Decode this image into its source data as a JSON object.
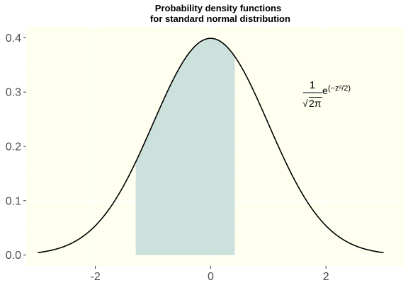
{
  "chart_data": {
    "type": "area",
    "title_line1": "Probability density functions",
    "title_line2": "for standard normal distribution",
    "xlabel": "",
    "ylabel": "",
    "xlim": [
      -3.2,
      3.35
    ],
    "ylim": [
      -0.02,
      0.42
    ],
    "x_ticks": [
      -2,
      0,
      2
    ],
    "x_tick_labels": [
      "-2",
      "0",
      "2"
    ],
    "y_ticks": [
      0.0,
      0.1,
      0.2,
      0.3,
      0.4
    ],
    "y_tick_labels": [
      "0.0",
      "0.1",
      "0.2",
      "0.3",
      "0.4"
    ],
    "curve": {
      "function": "standard normal density",
      "x_range": [
        -3,
        3
      ],
      "color": "#000000"
    },
    "shaded_region": {
      "x_from": -1.3,
      "x_to": 0.42,
      "color": "#cce0dc"
    },
    "annotation": {
      "numerator": "1",
      "radical": "√",
      "radicand": "2π",
      "base": "e",
      "exponent": "(−z²/2)"
    },
    "panel_color": "#fffff0",
    "grid": true,
    "legend": "none"
  }
}
